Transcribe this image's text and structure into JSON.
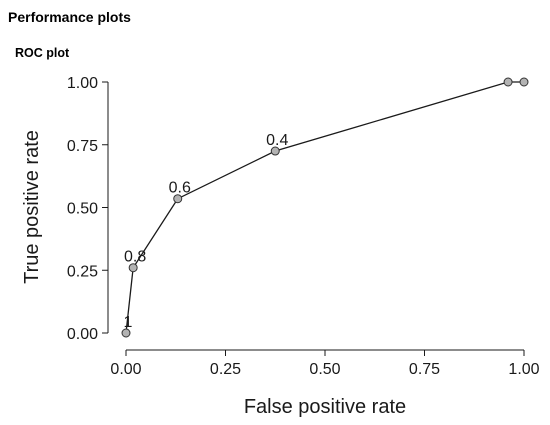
{
  "panel": {
    "section_title": "Performance plots",
    "plot_title": "ROC plot"
  },
  "chart_data": {
    "type": "line",
    "title": "ROC plot",
    "xlabel": "False positive rate",
    "ylabel": "True positive rate",
    "xlim": [
      0,
      1
    ],
    "ylim": [
      0,
      1
    ],
    "x_ticks": [
      "0.00",
      "0.25",
      "0.50",
      "0.75",
      "1.00"
    ],
    "y_ticks": [
      "0.00",
      "0.25",
      "0.50",
      "0.75",
      "1.00"
    ],
    "grid": false,
    "legend": "none",
    "line_color": "#1a1a1a",
    "marker_color": "#b3b3b3",
    "points": [
      {
        "x": 0.0,
        "y": 0.0,
        "label": "1"
      },
      {
        "x": 0.018,
        "y": 0.26,
        "label": "0.8"
      },
      {
        "x": 0.13,
        "y": 0.535,
        "label": "0.6"
      },
      {
        "x": 0.375,
        "y": 0.725,
        "label": "0.4"
      },
      {
        "x": 0.96,
        "y": 1.0,
        "label": ""
      },
      {
        "x": 1.0,
        "y": 1.0,
        "label": ""
      }
    ]
  }
}
